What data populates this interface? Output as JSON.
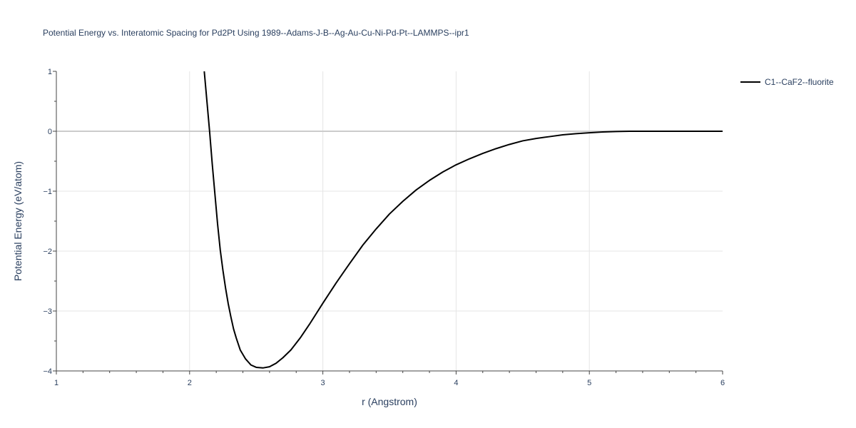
{
  "chart_data": {
    "type": "line",
    "title": "Potential Energy vs. Interatomic Spacing for Pd2Pt Using 1989--Adams-J-B--Ag-Au-Cu-Ni-Pd-Pt--LAMMPS--ipr1",
    "xlabel": "r (Angstrom)",
    "ylabel": "Potential Energy (eV/atom)",
    "xlim": [
      1,
      6
    ],
    "ylim": [
      -4,
      1
    ],
    "x_ticks": [
      "1",
      "2",
      "3",
      "4",
      "5",
      "6"
    ],
    "y_ticks": [
      "1",
      "0",
      "−1",
      "−2",
      "−3",
      "−4"
    ],
    "grid": true,
    "legend_position": "top-right",
    "colors": {
      "line": "#000000",
      "grid": "#e5e5e5",
      "zeroline": "#cccccc",
      "text": "#2a3f5f"
    },
    "series": [
      {
        "name": "C1--CaF2--fluorite",
        "points": [
          [
            2.11,
            1.0
          ],
          [
            2.13,
            0.5
          ],
          [
            2.15,
            0.0
          ],
          [
            2.17,
            -0.55
          ],
          [
            2.19,
            -1.05
          ],
          [
            2.21,
            -1.55
          ],
          [
            2.23,
            -1.98
          ],
          [
            2.25,
            -2.32
          ],
          [
            2.27,
            -2.62
          ],
          [
            2.29,
            -2.88
          ],
          [
            2.31,
            -3.1
          ],
          [
            2.33,
            -3.3
          ],
          [
            2.35,
            -3.45
          ],
          [
            2.38,
            -3.65
          ],
          [
            2.42,
            -3.8
          ],
          [
            2.46,
            -3.9
          ],
          [
            2.5,
            -3.94
          ],
          [
            2.55,
            -3.95
          ],
          [
            2.6,
            -3.93
          ],
          [
            2.65,
            -3.87
          ],
          [
            2.7,
            -3.78
          ],
          [
            2.76,
            -3.65
          ],
          [
            2.83,
            -3.45
          ],
          [
            2.9,
            -3.22
          ],
          [
            3.0,
            -2.87
          ],
          [
            3.1,
            -2.53
          ],
          [
            3.2,
            -2.21
          ],
          [
            3.3,
            -1.9
          ],
          [
            3.4,
            -1.63
          ],
          [
            3.5,
            -1.38
          ],
          [
            3.6,
            -1.17
          ],
          [
            3.7,
            -0.98
          ],
          [
            3.8,
            -0.82
          ],
          [
            3.9,
            -0.68
          ],
          [
            4.0,
            -0.56
          ],
          [
            4.1,
            -0.46
          ],
          [
            4.2,
            -0.37
          ],
          [
            4.3,
            -0.29
          ],
          [
            4.4,
            -0.22
          ],
          [
            4.5,
            -0.16
          ],
          [
            4.6,
            -0.12
          ],
          [
            4.7,
            -0.09
          ],
          [
            4.8,
            -0.06
          ],
          [
            4.9,
            -0.04
          ],
          [
            5.0,
            -0.025
          ],
          [
            5.1,
            -0.012
          ],
          [
            5.2,
            -0.005
          ],
          [
            5.3,
            0.0
          ],
          [
            5.5,
            0.0
          ],
          [
            5.75,
            0.0
          ],
          [
            6.0,
            0.0
          ]
        ]
      }
    ]
  }
}
